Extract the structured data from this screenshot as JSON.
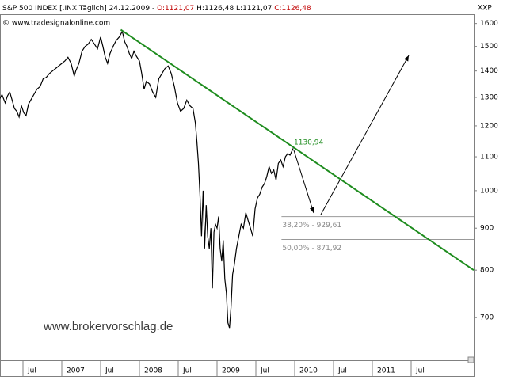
{
  "chart_data": {
    "type": "line",
    "title": "S&P 500 INDEX [.INX Täglich] 24.12.2009 -",
    "open": "O:1121,07",
    "high_low": "H:1126,48 L:1121,07",
    "close": "C:1126,48",
    "source": "© www.tradesignalonline.com",
    "symbol": "XXP",
    "watermark": "www.brokervorschlag.de",
    "peak_label": "1130,94",
    "color": "#000000",
    "log_y": true,
    "grid": false,
    "x": [
      2006.2,
      2006.23,
      2006.27,
      2006.3,
      2006.33,
      2006.36,
      2006.39,
      2006.42,
      2006.45,
      2006.48,
      2006.51,
      2006.54,
      2006.57,
      2006.6,
      2006.64,
      2006.68,
      2006.72,
      2006.76,
      2006.8,
      2006.84,
      2006.88,
      2006.92,
      2006.96,
      2007.0,
      2007.04,
      2007.08,
      2007.12,
      2007.16,
      2007.18,
      2007.22,
      2007.26,
      2007.3,
      2007.34,
      2007.38,
      2007.42,
      2007.46,
      2007.5,
      2007.53,
      2007.56,
      2007.59,
      2007.62,
      2007.66,
      2007.7,
      2007.74,
      2007.78,
      2007.81,
      2007.84,
      2007.87,
      2007.9,
      2007.93,
      2007.96,
      2008.0,
      2008.03,
      2008.06,
      2008.09,
      2008.13,
      2008.17,
      2008.21,
      2008.25,
      2008.29,
      2008.33,
      2008.37,
      2008.41,
      2008.45,
      2008.49,
      2008.53,
      2008.57,
      2008.61,
      2008.65,
      2008.69,
      2008.72,
      2008.74,
      2008.76,
      2008.78,
      2008.8,
      2008.82,
      2008.84,
      2008.86,
      2008.88,
      2008.9,
      2008.92,
      2008.94,
      2008.96,
      2008.98,
      2009.0,
      2009.02,
      2009.04,
      2009.06,
      2009.08,
      2009.1,
      2009.12,
      2009.14,
      2009.16,
      2009.18,
      2009.2,
      2009.22,
      2009.25,
      2009.28,
      2009.31,
      2009.34,
      2009.37,
      2009.4,
      2009.43,
      2009.46,
      2009.49,
      2009.52,
      2009.55,
      2009.58,
      2009.61,
      2009.64,
      2009.67,
      2009.7,
      2009.73,
      2009.76,
      2009.79,
      2009.82,
      2009.85,
      2009.88,
      2009.91,
      2009.94,
      2009.98
    ],
    "values": [
      1295,
      1310,
      1280,
      1305,
      1320,
      1290,
      1260,
      1250,
      1230,
      1270,
      1245,
      1235,
      1275,
      1290,
      1310,
      1330,
      1340,
      1370,
      1375,
      1390,
      1400,
      1410,
      1420,
      1430,
      1440,
      1455,
      1430,
      1380,
      1400,
      1430,
      1480,
      1500,
      1510,
      1530,
      1510,
      1490,
      1540,
      1500,
      1455,
      1430,
      1470,
      1500,
      1525,
      1540,
      1565,
      1520,
      1500,
      1470,
      1450,
      1480,
      1460,
      1440,
      1390,
      1330,
      1360,
      1350,
      1320,
      1300,
      1370,
      1390,
      1410,
      1420,
      1390,
      1340,
      1280,
      1250,
      1260,
      1290,
      1270,
      1260,
      1210,
      1150,
      1080,
      990,
      880,
      1000,
      850,
      960,
      880,
      850,
      900,
      760,
      890,
      910,
      900,
      930,
      850,
      820,
      870,
      780,
      750,
      690,
      680,
      720,
      790,
      810,
      850,
      880,
      910,
      900,
      940,
      920,
      900,
      880,
      950,
      980,
      990,
      1010,
      1020,
      1040,
      1070,
      1050,
      1060,
      1030,
      1080,
      1090,
      1070,
      1100,
      1110,
      1105,
      1126.48
    ],
    "xlim": [
      2006.204,
      2012.306
    ],
    "ylim": [
      621,
      1642
    ],
    "xticks": [
      {
        "value": 2006.5,
        "label": "Jul"
      },
      2007,
      {
        "value": 2007.5,
        "label": "Jul"
      },
      2008,
      {
        "value": 2008.5,
        "label": "Jul"
      },
      2009,
      {
        "value": 2009.5,
        "label": "Jul"
      },
      2010,
      {
        "value": 2010.5,
        "label": "Jul"
      },
      2011,
      {
        "value": 2011.5,
        "label": "Jul"
      }
    ],
    "yticks": [
      700,
      800,
      900,
      1000,
      1100,
      1200,
      1300,
      1400,
      1500,
      1600
    ],
    "trendline": {
      "color": "#1e8c1e",
      "x": [
        2007.76,
        2012.306
      ],
      "y": [
        1572,
        800
      ]
    },
    "levels": [
      {
        "value": 929.61,
        "from": 2009.83,
        "label": "38,20% - 929,61"
      },
      {
        "value": 871.92,
        "from": 2009.83,
        "label": "50,00% - 871,92"
      }
    ]
  }
}
